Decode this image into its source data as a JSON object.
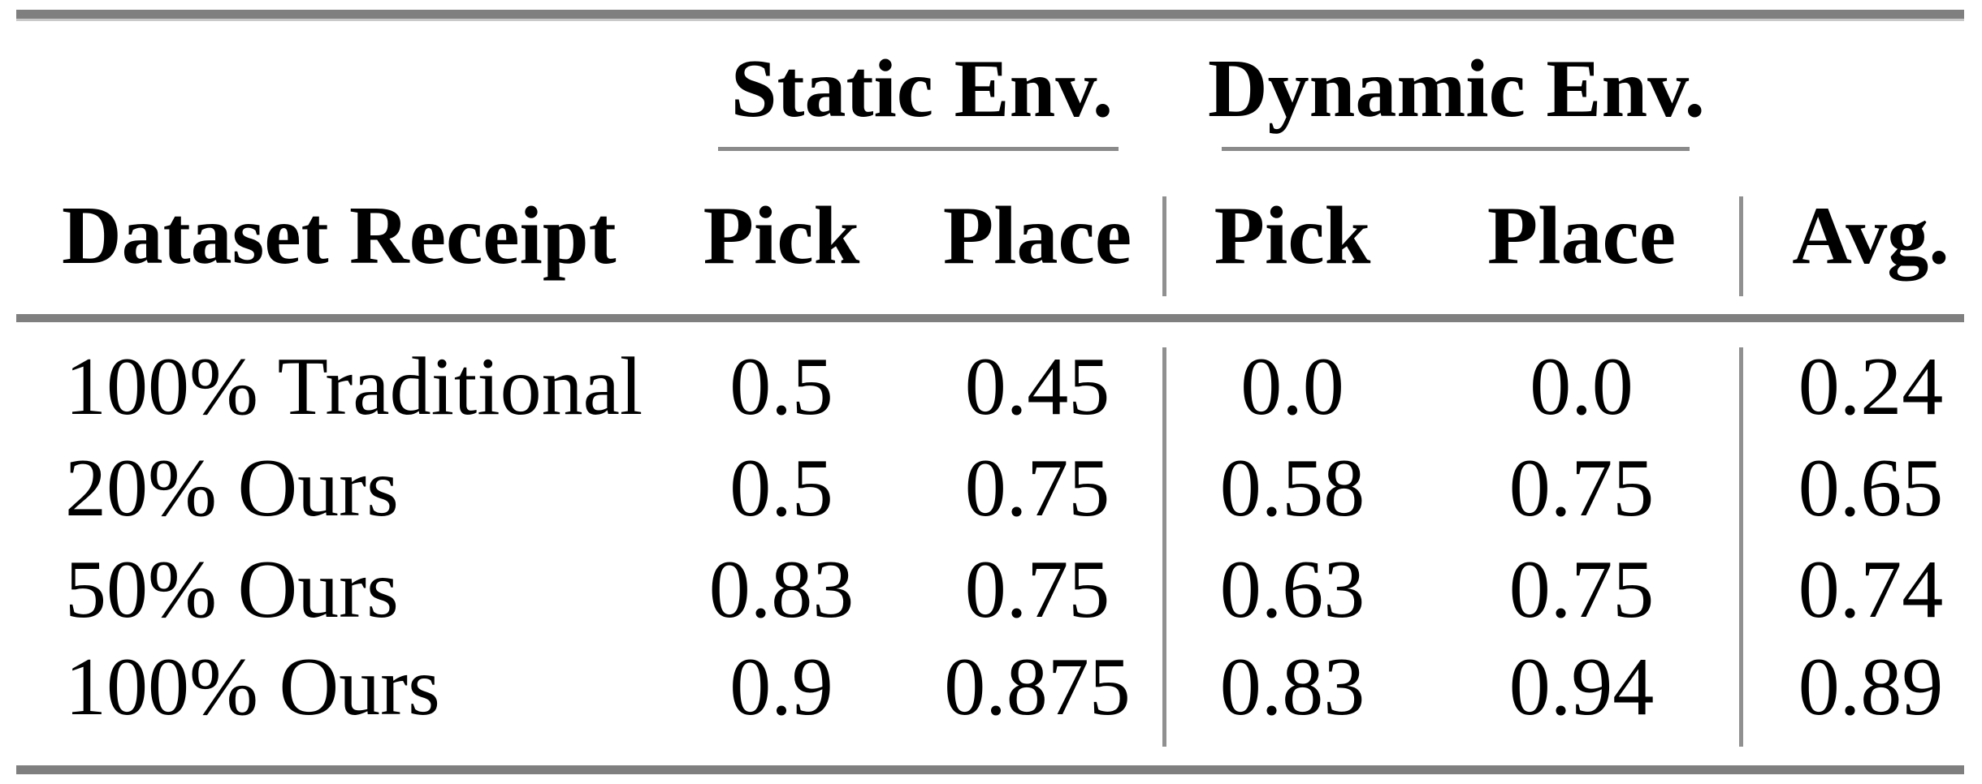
{
  "table": {
    "title": "success-rate results table",
    "line_color": "#7f7f7f",
    "text_color": "#000000",
    "col_groups": [
      {
        "label": "Static Env."
      },
      {
        "label": "Dynamic Env."
      }
    ],
    "columns": [
      "Dataset Receipt",
      "Pick",
      "Place",
      "Pick",
      "Place",
      "Avg."
    ],
    "rows": [
      {
        "label": "100% Traditional",
        "values": [
          "0.5",
          "0.45",
          "0.0",
          "0.0",
          "0.24"
        ]
      },
      {
        "label": "20% Ours",
        "values": [
          "0.5",
          "0.75",
          "0.58",
          "0.75",
          "0.65"
        ]
      },
      {
        "label": "50% Ours",
        "values": [
          "0.83",
          "0.75",
          "0.63",
          "0.75",
          "0.74"
        ]
      },
      {
        "label": "100% Ours",
        "values": [
          "0.9",
          "0.875",
          "0.83",
          "0.94",
          "0.89"
        ]
      }
    ]
  },
  "chart_data": {
    "type": "table",
    "title": "success-rate results table",
    "column_groups": [
      "Static Env.",
      "Dynamic Env."
    ],
    "columns": [
      "Dataset Receipt",
      "Pick (Static)",
      "Place (Static)",
      "Pick (Dynamic)",
      "Place (Dynamic)",
      "Avg."
    ],
    "rows": [
      [
        "100% Traditional",
        0.5,
        0.45,
        0.0,
        0.0,
        0.24
      ],
      [
        "20% Ours",
        0.5,
        0.75,
        0.58,
        0.75,
        0.65
      ],
      [
        "50% Ours",
        0.83,
        0.75,
        0.63,
        0.75,
        0.74
      ],
      [
        "100% Ours",
        0.9,
        0.875,
        0.83,
        0.94,
        0.89
      ]
    ]
  }
}
